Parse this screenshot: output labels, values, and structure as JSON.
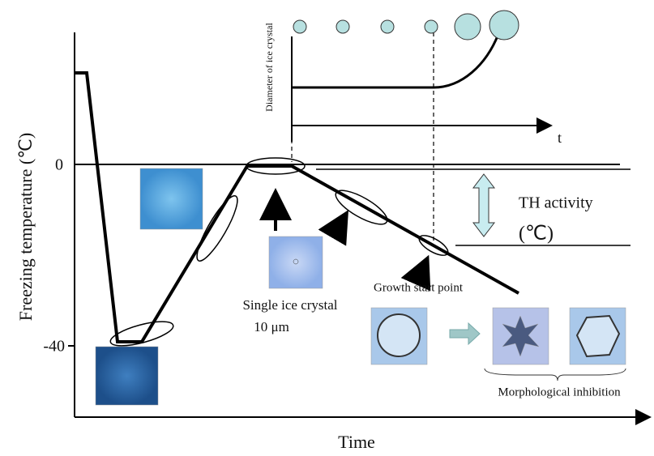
{
  "axes": {
    "y_label": "Freezing temperature (℃)",
    "x_label": "Time",
    "y_ticks": [
      "0",
      "-40"
    ]
  },
  "inset": {
    "y_label": "Diameter of ice crystal",
    "x_label": "t"
  },
  "labels": {
    "th_activity": "TH activity",
    "th_unit": "(℃)",
    "single_crystal": "Single ice crystal",
    "scale": "10 μm",
    "growth_start": "Growth start point",
    "morphological": "Morphological inhibition"
  }
}
